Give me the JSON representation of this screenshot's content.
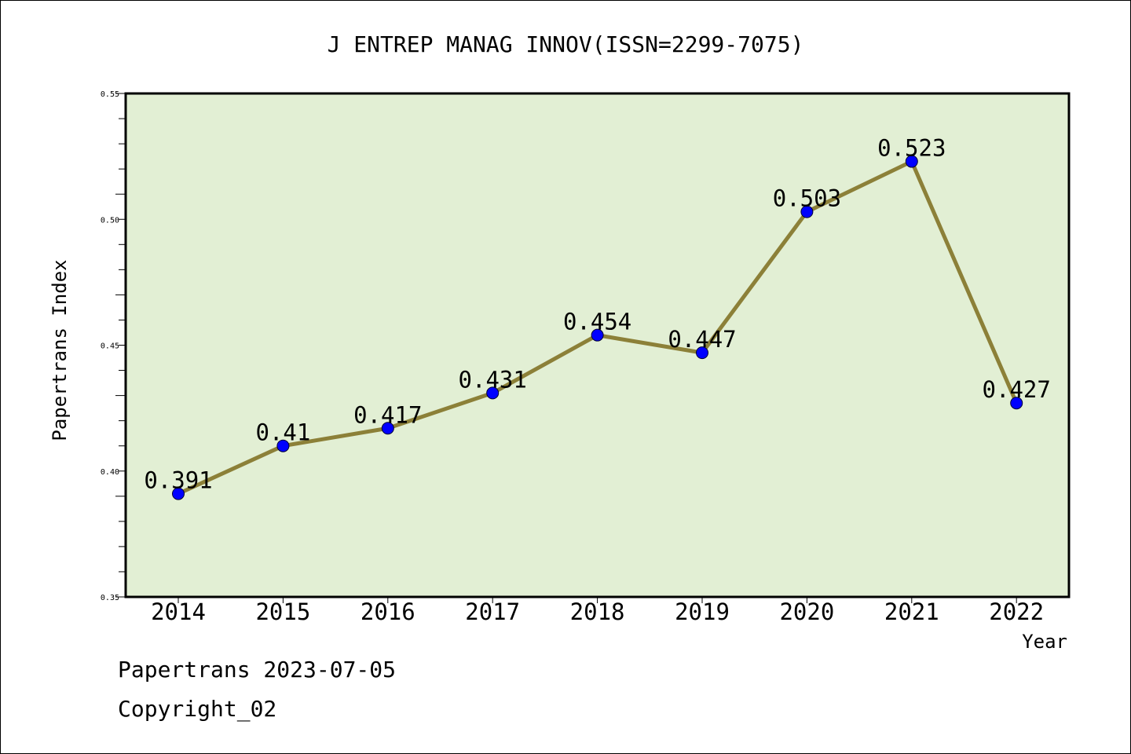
{
  "chart_data": {
    "type": "line",
    "title": "J ENTREP MANAG INNOV(ISSN=2299-7075)",
    "xlabel": "Year",
    "ylabel": "Papertrans Index",
    "categories": [
      "2014",
      "2015",
      "2016",
      "2017",
      "2018",
      "2019",
      "2020",
      "2021",
      "2022"
    ],
    "values": [
      0.391,
      0.41,
      0.417,
      0.431,
      0.454,
      0.447,
      0.503,
      0.523,
      0.427
    ],
    "data_labels": [
      "0.391",
      "0.41",
      "0.417",
      "0.431",
      "0.454",
      "0.447",
      "0.503",
      "0.523",
      "0.427"
    ],
    "ylim": [
      0.35,
      0.55
    ],
    "yticks": [
      "0.35",
      "0.40",
      "0.45",
      "0.50",
      "0.55"
    ],
    "grid": false,
    "colors": {
      "plot_background": "#e2efd4",
      "line": "#8c8038",
      "marker": "#0000ff"
    }
  },
  "footer": {
    "source": "Papertrans 2023-07-05",
    "copyright": "Copyright_02"
  }
}
